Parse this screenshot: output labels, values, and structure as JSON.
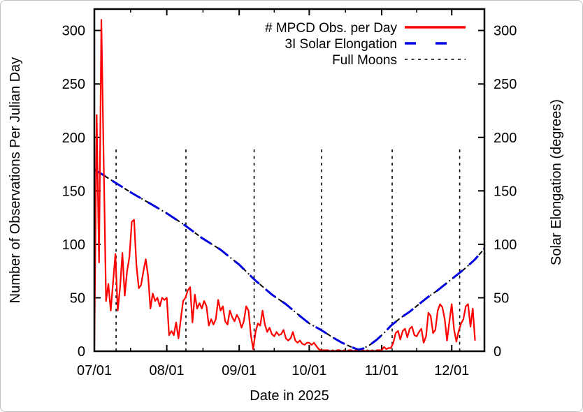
{
  "figure": {
    "background": "#ffffff",
    "frame_color": "#000000"
  },
  "titles": {
    "xlabel": "Date in 2025",
    "ylabel_left": "Number of Observations Per Julian Day",
    "ylabel_right": "Solar Elongation (degrees)"
  },
  "chart_data": {
    "type": "line",
    "xlabel": "Date in 2025",
    "ylabel_left": "Number of Observations Per Julian Day",
    "ylabel_right": "Solar Elongation (degrees)",
    "grid": false,
    "legend_position": "top-center-right",
    "x_domain_days_from_jul1": [
      0,
      167
    ],
    "ylim_left": [
      0,
      320
    ],
    "ylim_right": [
      0,
      320
    ],
    "yticks": [
      0,
      50,
      100,
      150,
      200,
      250,
      300
    ],
    "xticks": {
      "days": [
        0,
        31,
        62,
        92,
        123,
        153
      ],
      "labels": [
        "07/01",
        "08/01",
        "09/01",
        "10/01",
        "11/01",
        "12/01"
      ]
    },
    "xticks_minor_days": [
      15.5,
      46.5,
      77,
      107.5,
      138
    ],
    "series": [
      {
        "name": "# MPCD Obs. per Day",
        "color": "#ff0000",
        "style": "solid",
        "axis": "left",
        "start_day": 0,
        "step_days": 1,
        "values": [
          5,
          221,
          83,
          310,
          175,
          47,
          63,
          38,
          64,
          91,
          38,
          60,
          92,
          52,
          75,
          88,
          121,
          123,
          81,
          59,
          62,
          75,
          86,
          70,
          40,
          54,
          47,
          50,
          42,
          50,
          48,
          50,
          15,
          19,
          15,
          27,
          12,
          30,
          47,
          50,
          57,
          60,
          27,
          53,
          40,
          45,
          40,
          47,
          42,
          24,
          30,
          25,
          30,
          48,
          38,
          42,
          28,
          25,
          38,
          32,
          28,
          34,
          30,
          22,
          28,
          42,
          38,
          15,
          2,
          18,
          26,
          24,
          38,
          25,
          18,
          22,
          16,
          14,
          18,
          15,
          16,
          20,
          12,
          10,
          12,
          18,
          10,
          8,
          10,
          7,
          6,
          8,
          8,
          6,
          8,
          5,
          2,
          1,
          1,
          1,
          1,
          0,
          1,
          0,
          1,
          1,
          0,
          1,
          0,
          1,
          1,
          0,
          1,
          0,
          0,
          1,
          0,
          1,
          0,
          1,
          0,
          1,
          1,
          1,
          4,
          2,
          3,
          3,
          8,
          17,
          19,
          11,
          19,
          21,
          13,
          21,
          23,
          15,
          14,
          18,
          21,
          8,
          14,
          36,
          33,
          17,
          20,
          38,
          44,
          41,
          30,
          10,
          28,
          44,
          20,
          9,
          19,
          26,
          30,
          42,
          44,
          23,
          40,
          10
        ]
      },
      {
        "name": "3I Solar Elongation",
        "color": "#0000e0",
        "underlay_color": "#000000",
        "style": "dash-dot",
        "axis": "right",
        "points": [
          [
            0,
            170
          ],
          [
            8,
            159
          ],
          [
            16,
            148
          ],
          [
            24,
            138
          ],
          [
            31,
            129
          ],
          [
            38,
            119
          ],
          [
            46,
            106
          ],
          [
            54,
            95
          ],
          [
            62,
            81
          ],
          [
            69,
            66
          ],
          [
            76,
            53
          ],
          [
            82,
            44
          ],
          [
            88,
            33
          ],
          [
            92,
            26
          ],
          [
            97,
            20
          ],
          [
            102,
            13
          ],
          [
            106,
            8
          ],
          [
            110,
            4
          ],
          [
            113,
            1.5
          ],
          [
            115,
            2.5
          ],
          [
            118,
            6
          ],
          [
            121,
            11
          ],
          [
            124,
            17
          ],
          [
            127,
            24
          ],
          [
            131,
            31
          ],
          [
            135,
            37
          ],
          [
            139,
            44
          ],
          [
            143,
            51
          ],
          [
            147,
            57
          ],
          [
            151,
            64
          ],
          [
            155,
            71
          ],
          [
            159,
            78
          ],
          [
            163,
            86
          ],
          [
            167,
            96
          ]
        ]
      },
      {
        "name": "Full Moons",
        "color": "#000000",
        "style": "vertical-dotted",
        "days": [
          9.3,
          39.2,
          68.4,
          97.3,
          127.5,
          156.4
        ],
        "y_extent": [
          0,
          190
        ]
      }
    ]
  }
}
